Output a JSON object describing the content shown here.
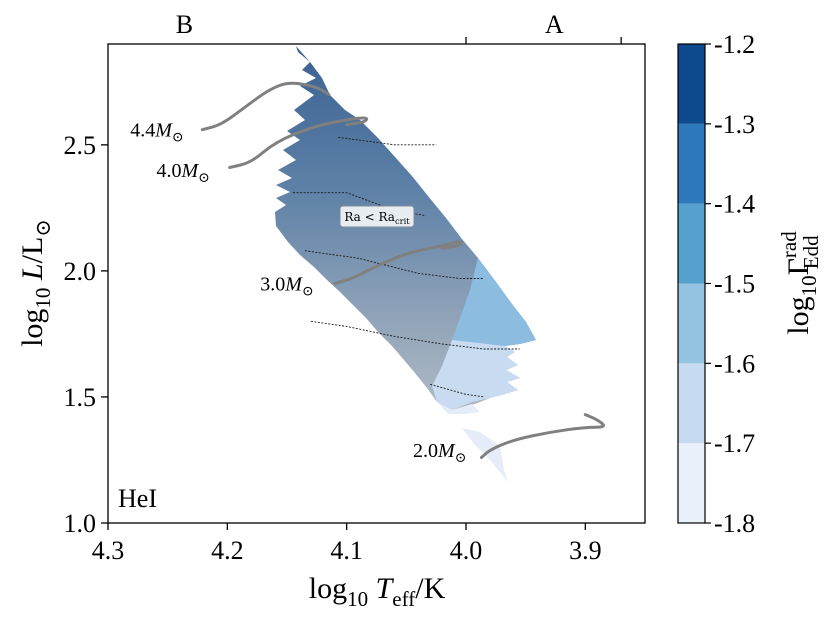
{
  "chart_data": {
    "type": "heatmap",
    "title": "",
    "panel_label": "HeI",
    "xlabel": "log10 Teff/K",
    "ylabel": "log10 L/L⊙",
    "xlim": [
      4.3,
      3.85
    ],
    "ylim": [
      1.0,
      2.9
    ],
    "x_ticks": [
      4.3,
      4.2,
      4.1,
      4.0,
      3.9
    ],
    "x_tick_labels": [
      "4.3",
      "4.2",
      "4.1",
      "4.0",
      "3.9"
    ],
    "y_ticks": [
      1.0,
      1.5,
      2.0,
      2.5
    ],
    "y_tick_labels": [
      "1.0",
      "1.5",
      "2.0",
      "2.5"
    ],
    "top_axis": {
      "ticks": [
        4.0,
        3.87
      ],
      "labels": [
        {
          "text": "B",
          "x": 4.236
        },
        {
          "text": "A",
          "x": 3.926
        }
      ]
    },
    "colorbar": {
      "label": "log10 Γ_Edd^rad",
      "label_main": "log",
      "label_sub": "10",
      "label_sym": "Γ",
      "label_sup": "rad",
      "label_subsym": "Edd",
      "levels": [
        -1.8,
        -1.7,
        -1.6,
        -1.5,
        -1.4,
        -1.3,
        -1.2
      ],
      "tick_labels": [
        "-1.8",
        "-1.7",
        "-1.6",
        "-1.5",
        "-1.4",
        "-1.3",
        "-1.2"
      ],
      "colors": [
        "#eaf1fb",
        "#c6dbf1",
        "#93c3e0",
        "#56a0d0",
        "#2c78bb",
        "#0e4a8e"
      ]
    },
    "tracks": [
      {
        "label": "4.4M⊙",
        "label_main": "4.4M",
        "label_x": 4.259,
        "label_y": 2.56,
        "points": [
          [
            4.221,
            2.56
          ],
          [
            4.205,
            2.58
          ],
          [
            4.185,
            2.65
          ],
          [
            4.165,
            2.72
          ],
          [
            4.148,
            2.75
          ],
          [
            4.125,
            2.73
          ],
          [
            4.115,
            2.7
          ]
        ]
      },
      {
        "label": "4.0M⊙",
        "label_main": "4.0M",
        "label_x": 4.237,
        "label_y": 2.4,
        "points": [
          [
            4.198,
            2.41
          ],
          [
            4.18,
            2.43
          ],
          [
            4.16,
            2.51
          ],
          [
            4.13,
            2.57
          ],
          [
            4.1,
            2.6
          ],
          [
            4.082,
            2.61
          ],
          [
            4.085,
            2.59
          ],
          [
            4.1,
            2.58
          ]
        ]
      },
      {
        "label": "3.0M⊙",
        "label_main": "3.0M",
        "label_x": 4.15,
        "label_y": 1.95,
        "points": [
          [
            4.11,
            1.95
          ],
          [
            4.095,
            1.97
          ],
          [
            4.075,
            2.02
          ],
          [
            4.05,
            2.07
          ],
          [
            4.02,
            2.1
          ],
          [
            4.003,
            2.12
          ],
          [
            4.005,
            2.1
          ],
          [
            4.02,
            2.09
          ]
        ]
      },
      {
        "label": "2.0M⊙",
        "label_main": "2.0M",
        "label_x": 4.022,
        "label_y": 1.29,
        "points": [
          [
            3.987,
            1.26
          ],
          [
            3.98,
            1.29
          ],
          [
            3.96,
            1.33
          ],
          [
            3.93,
            1.36
          ],
          [
            3.9,
            1.38
          ],
          [
            3.882,
            1.38
          ],
          [
            3.89,
            1.41
          ],
          [
            3.9,
            1.43
          ]
        ]
      }
    ],
    "isocontours": [
      {
        "points": [
          [
            4.107,
            2.53
          ],
          [
            4.06,
            2.5
          ],
          [
            4.025,
            2.5
          ]
        ]
      },
      {
        "points": [
          [
            4.145,
            2.31
          ],
          [
            4.1,
            2.31
          ],
          [
            4.06,
            2.24
          ],
          [
            4.035,
            2.22
          ]
        ]
      },
      {
        "points": [
          [
            4.135,
            2.08
          ],
          [
            4.09,
            2.05
          ],
          [
            4.04,
            1.99
          ],
          [
            4.005,
            1.97
          ],
          [
            3.985,
            1.97
          ]
        ]
      },
      {
        "points": [
          [
            4.13,
            1.8
          ],
          [
            4.1,
            1.78
          ],
          [
            4.06,
            1.74
          ],
          [
            4.02,
            1.71
          ],
          [
            3.985,
            1.69
          ],
          [
            3.955,
            1.69
          ]
        ]
      },
      {
        "points": [
          [
            4.03,
            1.55
          ],
          [
            4.0,
            1.51
          ],
          [
            3.985,
            1.5
          ]
        ]
      }
    ],
    "annotation_box": {
      "text": "Ra < Ra_crit",
      "main": "Ra < Ra",
      "sub": "crit",
      "x": 4.075,
      "y": 2.21
    },
    "regions": [
      {
        "name": "grey-band",
        "level_low": -1.8,
        "level_high": -1.2,
        "color": "#a4b2c0"
      }
    ]
  }
}
